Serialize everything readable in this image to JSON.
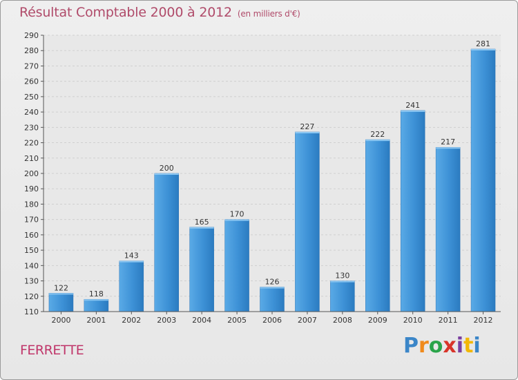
{
  "chart_data": {
    "type": "bar",
    "title": "Résultat Comptable 2000 à 2012",
    "subtitle": "(en milliers d'€)",
    "categories": [
      "2000",
      "2001",
      "2002",
      "2003",
      "2004",
      "2005",
      "2006",
      "2007",
      "2008",
      "2009",
      "2010",
      "2011",
      "2012"
    ],
    "values": [
      122,
      118,
      143,
      200,
      165,
      170,
      126,
      227,
      130,
      222,
      241,
      217,
      281
    ],
    "ylim": [
      110,
      290
    ],
    "ytick_step": 10,
    "grid": true,
    "bar_color": "#3d8fd4"
  },
  "footer": {
    "town": "FERRETTE",
    "brand": "Proxiti",
    "brand_colors": [
      "#3b86c8",
      "#f08a1c",
      "#2aa44a",
      "#d8352a",
      "#7a3fa0",
      "#f2b705",
      "#3b86c8"
    ]
  }
}
